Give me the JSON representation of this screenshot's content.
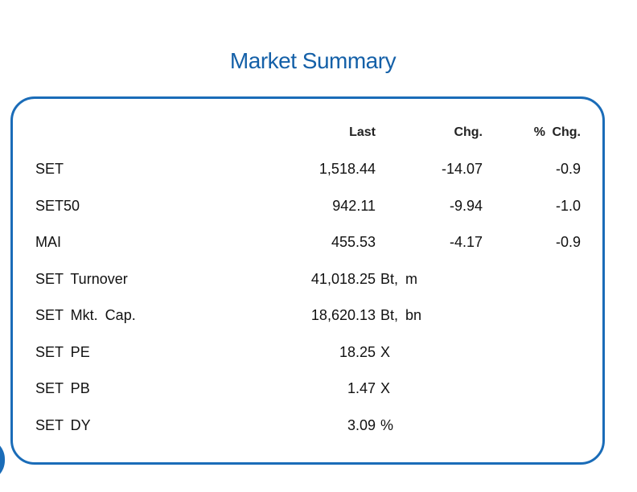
{
  "title": "Market Summary",
  "columns": {
    "last": "Last",
    "chg": "Chg.",
    "pct_chg": "% Chg."
  },
  "rows": [
    {
      "label": "SET",
      "last": "1,518.44",
      "unit": "",
      "chg": "-14.07",
      "pct_chg": "-0.9"
    },
    {
      "label": "SET50",
      "last": "942.11",
      "unit": "",
      "chg": "-9.94",
      "pct_chg": "-1.0"
    },
    {
      "label": "MAI",
      "last": "455.53",
      "unit": "",
      "chg": "-4.17",
      "pct_chg": "-0.9"
    },
    {
      "label": "SET Turnover",
      "last": "41,018.25",
      "unit": "Bt, m",
      "chg": "",
      "pct_chg": ""
    },
    {
      "label": "SET Mkt. Cap.",
      "last": "18,620.13",
      "unit": "Bt, bn",
      "chg": "",
      "pct_chg": ""
    },
    {
      "label": "SET PE",
      "last": "18.25",
      "unit": "X",
      "chg": "",
      "pct_chg": ""
    },
    {
      "label": "SET PB",
      "last": "1.47",
      "unit": "X",
      "chg": "",
      "pct_chg": ""
    },
    {
      "label": "SET DY",
      "last": "3.09",
      "unit": "%",
      "chg": "",
      "pct_chg": ""
    }
  ],
  "colors": {
    "title": "#1460a8",
    "border": "#1a6cb8",
    "text": "#111111"
  }
}
